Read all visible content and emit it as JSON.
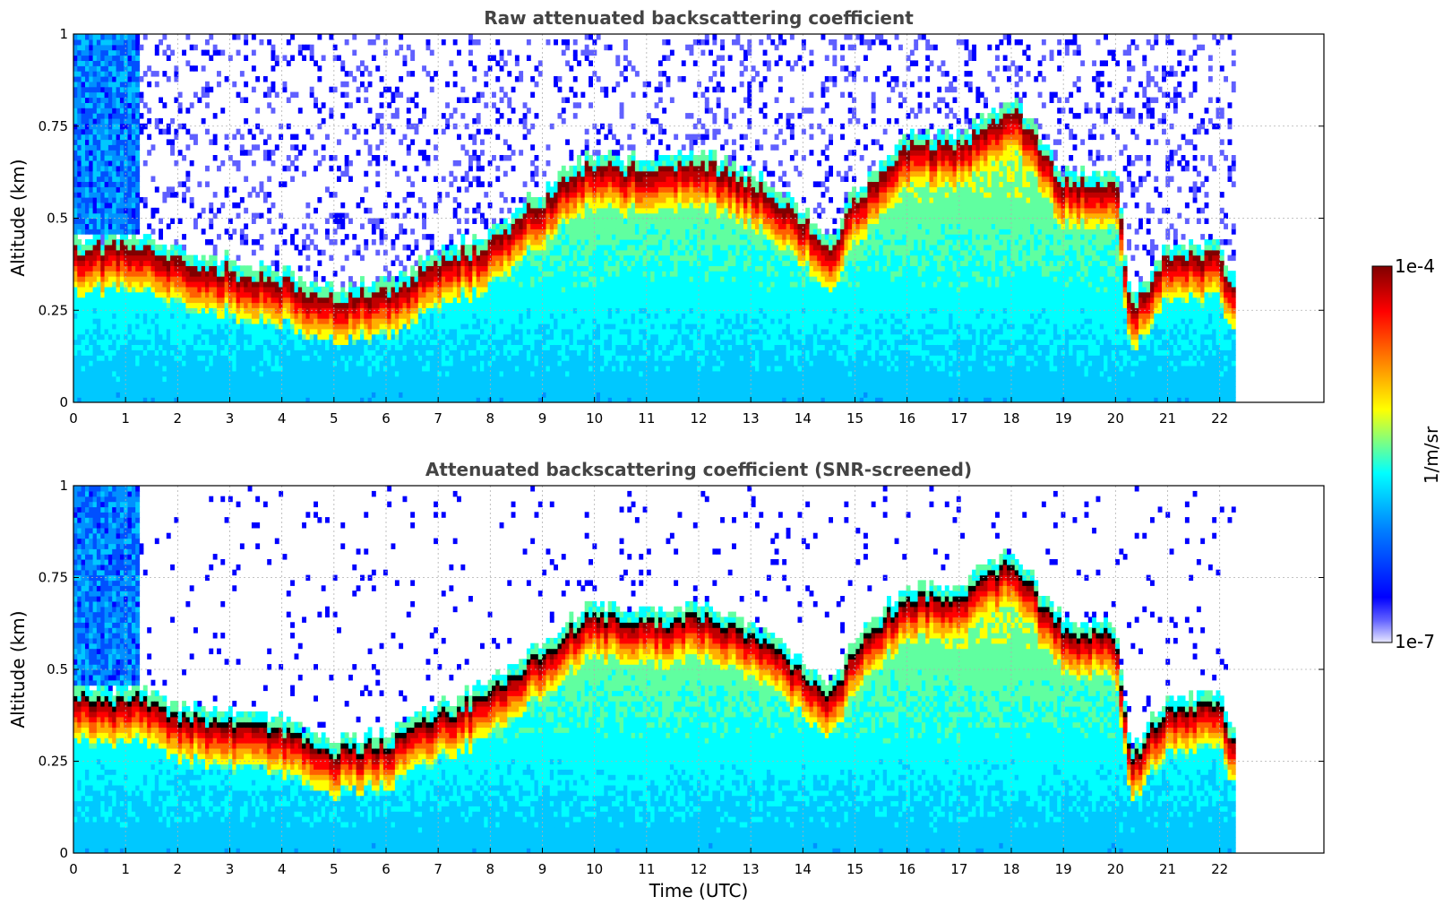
{
  "chart_data": [
    {
      "type": "heatmap",
      "title": "Raw attenuated backscattering coefficient",
      "xlabel": "",
      "ylabel": "Altitude (km)",
      "xlim": [
        0,
        24
      ],
      "ylim": [
        0,
        1
      ],
      "xticks": [
        "0",
        "1",
        "2",
        "3",
        "4",
        "5",
        "6",
        "7",
        "8",
        "9",
        "10",
        "11",
        "12",
        "13",
        "14",
        "15",
        "16",
        "17",
        "18",
        "19",
        "20",
        "21",
        "22"
      ],
      "yticks": [
        "0",
        "0.25",
        "0.5",
        "0.75",
        "1"
      ],
      "grid": true,
      "data_end_hour": 22.3,
      "layer_top_profile": {
        "x": [
          1.3,
          2,
          3,
          4,
          5,
          6,
          7,
          7.8,
          9,
          10,
          11,
          12,
          13,
          14,
          14.5,
          15,
          16,
          17,
          18,
          19,
          20,
          20.3,
          21,
          22,
          22.3
        ],
        "y": [
          0.42,
          0.38,
          0.36,
          0.33,
          0.28,
          0.3,
          0.38,
          0.42,
          0.55,
          0.65,
          0.63,
          0.65,
          0.6,
          0.5,
          0.42,
          0.55,
          0.7,
          0.7,
          0.8,
          0.6,
          0.6,
          0.25,
          0.4,
          0.4,
          0.3
        ]
      }
    },
    {
      "type": "heatmap",
      "title": "Attenuated backscattering coefficient (SNR-screened)",
      "xlabel": "Time (UTC)",
      "ylabel": "Altitude (km)",
      "xlim": [
        0,
        24
      ],
      "ylim": [
        0,
        1
      ],
      "xticks": [
        "0",
        "1",
        "2",
        "3",
        "4",
        "5",
        "6",
        "7",
        "8",
        "9",
        "10",
        "11",
        "12",
        "13",
        "14",
        "15",
        "16",
        "17",
        "18",
        "19",
        "20",
        "21",
        "22"
      ],
      "yticks": [
        "0",
        "0.25",
        "0.5",
        "0.75",
        "1"
      ],
      "grid": true,
      "data_end_hour": 22.3,
      "layer_top_profile": {
        "x": [
          1.3,
          2,
          3,
          4,
          5,
          6,
          7,
          7.8,
          9,
          10,
          11,
          12,
          13,
          14,
          14.5,
          15,
          16,
          17,
          18,
          19,
          20,
          20.3,
          21,
          22,
          22.3
        ],
        "y": [
          0.42,
          0.38,
          0.36,
          0.33,
          0.28,
          0.3,
          0.38,
          0.42,
          0.55,
          0.65,
          0.63,
          0.65,
          0.6,
          0.5,
          0.42,
          0.55,
          0.7,
          0.7,
          0.8,
          0.6,
          0.6,
          0.25,
          0.4,
          0.4,
          0.3
        ]
      }
    }
  ],
  "colorbar": {
    "label": "1/m/sr",
    "max_label": "1e-4",
    "min_label": "1e-7",
    "colors": [
      "#e8e8ff",
      "#0000ff",
      "#00a0ff",
      "#00ffff",
      "#ffff00",
      "#ff8000",
      "#ff0000",
      "#800000"
    ]
  }
}
